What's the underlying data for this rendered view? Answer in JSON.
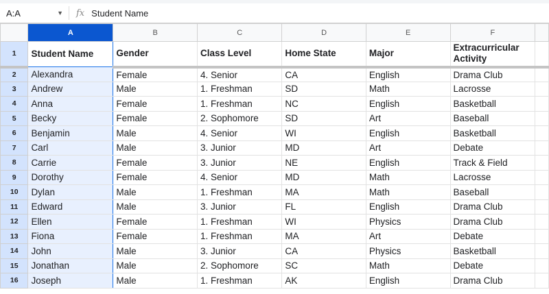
{
  "formula_bar": {
    "name_box": "A:A",
    "fx_icon": "fx",
    "content": "Student Name"
  },
  "columns": [
    "A",
    "B",
    "C",
    "D",
    "E",
    "F",
    ""
  ],
  "headers": [
    "Student Name",
    "Gender",
    "Class Level",
    "Home State",
    "Major",
    "Extracurricular Activity"
  ],
  "rows": [
    [
      "Alexandra",
      "Female",
      "4. Senior",
      "CA",
      "English",
      "Drama Club"
    ],
    [
      "Andrew",
      "Male",
      "1. Freshman",
      "SD",
      "Math",
      "Lacrosse"
    ],
    [
      "Anna",
      "Female",
      "1. Freshman",
      "NC",
      "English",
      "Basketball"
    ],
    [
      "Becky",
      "Female",
      "2. Sophomore",
      "SD",
      "Art",
      "Baseball"
    ],
    [
      "Benjamin",
      "Male",
      "4. Senior",
      "WI",
      "English",
      "Basketball"
    ],
    [
      "Carl",
      "Male",
      "3. Junior",
      "MD",
      "Art",
      "Debate"
    ],
    [
      "Carrie",
      "Female",
      "3. Junior",
      "NE",
      "English",
      "Track & Field"
    ],
    [
      "Dorothy",
      "Female",
      "4. Senior",
      "MD",
      "Math",
      "Lacrosse"
    ],
    [
      "Dylan",
      "Male",
      "1. Freshman",
      "MA",
      "Math",
      "Baseball"
    ],
    [
      "Edward",
      "Male",
      "3. Junior",
      "FL",
      "English",
      "Drama Club"
    ],
    [
      "Ellen",
      "Female",
      "1. Freshman",
      "WI",
      "Physics",
      "Drama Club"
    ],
    [
      "Fiona",
      "Female",
      "1. Freshman",
      "MA",
      "Art",
      "Debate"
    ],
    [
      "John",
      "Male",
      "3. Junior",
      "CA",
      "Physics",
      "Basketball"
    ],
    [
      "Jonathan",
      "Male",
      "2. Sophomore",
      "SC",
      "Math",
      "Debate"
    ],
    [
      "Joseph",
      "Male",
      "1. Freshman",
      "AK",
      "English",
      "Drama Club"
    ]
  ],
  "selected_column": "A",
  "colors": {
    "selection": "#0b57d0",
    "selection_fill": "#e8f0fe"
  }
}
